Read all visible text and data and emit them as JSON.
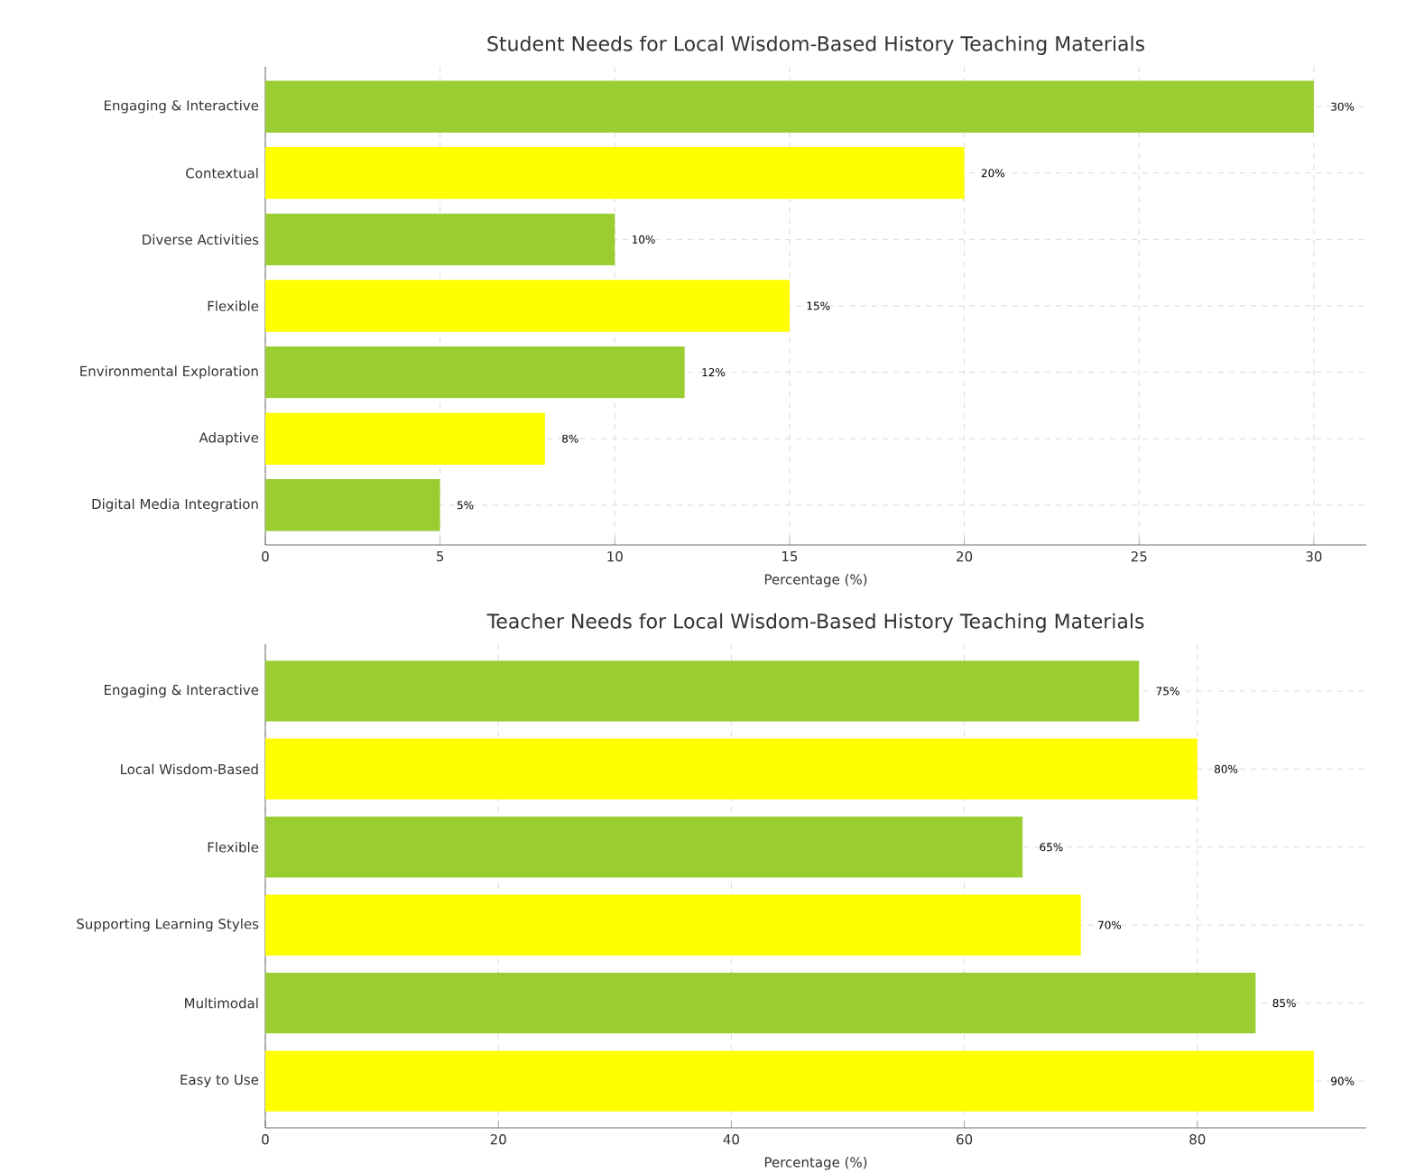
{
  "chart_data": [
    {
      "type": "bar",
      "orientation": "horizontal",
      "title": "Student Needs for Local Wisdom-Based History Teaching Materials",
      "xlabel": "Percentage (%)",
      "categories": [
        "Engaging & Interactive",
        "Contextual",
        "Diverse Activities",
        "Flexible",
        "Environmental Exploration",
        "Adaptive",
        "Digital Media Integration"
      ],
      "values": [
        30,
        20,
        10,
        15,
        12,
        8,
        5
      ],
      "value_labels": [
        "30%",
        "20%",
        "10%",
        "15%",
        "12%",
        "8%",
        "5%"
      ],
      "colors": [
        "#9acd32",
        "#ffff00",
        "#9acd32",
        "#ffff00",
        "#9acd32",
        "#ffff00",
        "#9acd32"
      ],
      "xlim": [
        0,
        31.5
      ],
      "xticks": [
        0,
        5,
        10,
        15,
        20,
        25,
        30
      ],
      "grid": true
    },
    {
      "type": "bar",
      "orientation": "horizontal",
      "title": "Teacher Needs for Local Wisdom-Based History Teaching Materials",
      "xlabel": "Percentage (%)",
      "categories": [
        "Engaging & Interactive",
        "Local Wisdom-Based",
        "Flexible",
        "Supporting Learning Styles",
        "Multimodal",
        "Easy to Use"
      ],
      "values": [
        75,
        80,
        65,
        70,
        85,
        90
      ],
      "value_labels": [
        "75%",
        "80%",
        "65%",
        "70%",
        "85%",
        "90%"
      ],
      "colors": [
        "#9acd32",
        "#ffff00",
        "#9acd32",
        "#ffff00",
        "#9acd32",
        "#ffff00"
      ],
      "xlim": [
        0,
        94.5
      ],
      "xticks": [
        0,
        20,
        40,
        60,
        80
      ],
      "grid": true
    }
  ]
}
